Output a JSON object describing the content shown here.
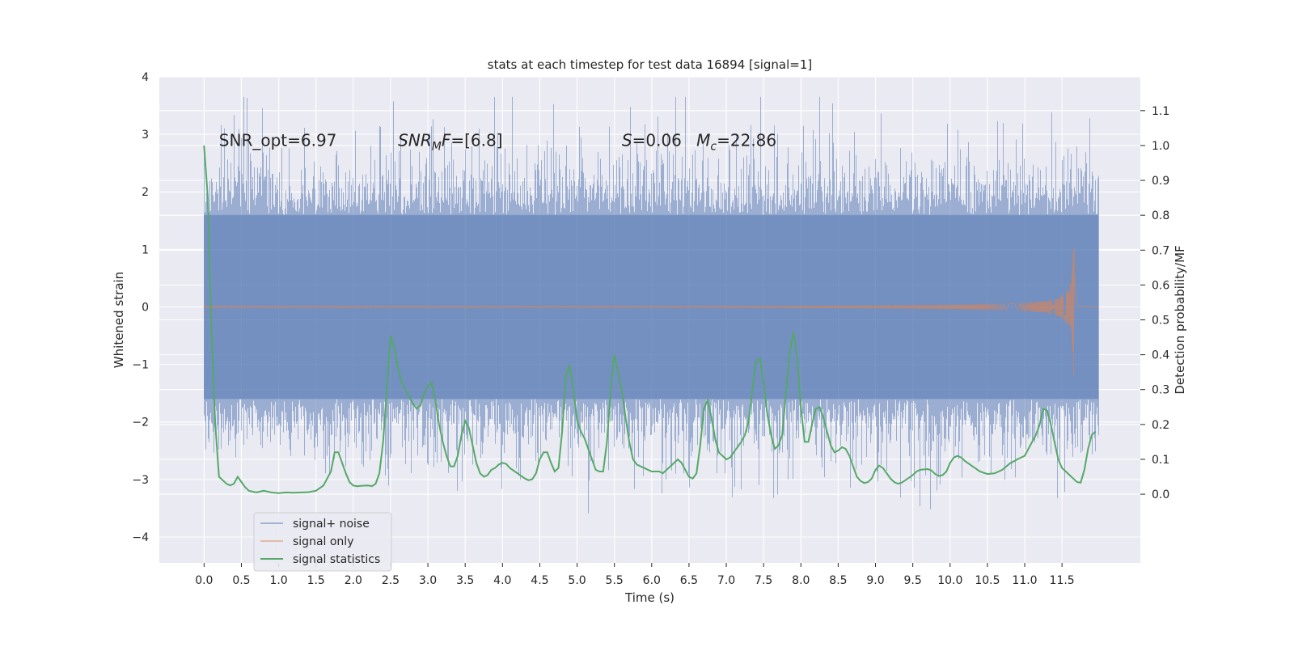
{
  "chart_data": {
    "type": "line",
    "title": "stats at each timestep for test data 16894 [signal=1]",
    "xlabel": "Time (s)",
    "ylabel": "Whitened strain",
    "y2label": "Detection probability/MF",
    "xlim": [
      -0.6,
      12.55
    ],
    "ylim": [
      -4.45,
      4.0
    ],
    "y2lim": [
      -0.197,
      1.197
    ],
    "x_ticks": [
      0.0,
      0.5,
      1.0,
      1.5,
      2.0,
      2.5,
      3.0,
      3.5,
      4.0,
      4.5,
      5.0,
      5.5,
      6.0,
      6.5,
      7.0,
      7.5,
      8.0,
      8.5,
      9.0,
      9.5,
      10.0,
      10.5,
      11.0,
      11.5
    ],
    "x_tick_labels": [
      "0.0",
      "0.5",
      "1.0",
      "1.5",
      "2.0",
      "2.5",
      "3.0",
      "3.5",
      "4.0",
      "4.5",
      "5.0",
      "5.5",
      "6.0",
      "6.5",
      "7.0",
      "7.5",
      "8.0",
      "8.5",
      "9.0",
      "9.5",
      "10.0",
      "10.5",
      "11.0",
      "11.5"
    ],
    "y_ticks": [
      4,
      3,
      2,
      1,
      0,
      -1,
      -2,
      -3,
      -4
    ],
    "y_tick_labels": [
      "4",
      "3",
      "2",
      "1",
      "0",
      "−1",
      "−2",
      "−3",
      "−4"
    ],
    "y2_ticks": [
      1.1,
      1.0,
      0.9,
      0.8,
      0.7,
      0.6,
      0.5,
      0.4,
      0.3,
      0.2,
      0.1,
      0.0
    ],
    "y2_tick_labels": [
      "1.1",
      "1.0",
      "0.9",
      "0.8",
      "0.7",
      "0.6",
      "0.5",
      "0.4",
      "0.3",
      "0.2",
      "0.1",
      "0.0"
    ],
    "grid": true,
    "legend_position": "lower-left",
    "series": [
      {
        "name": "signal+ noise",
        "color": "#4c72b0",
        "axis": "left",
        "t_range": [
          0.0,
          11.99
        ],
        "core_band": [
          -1.6,
          1.6
        ],
        "max_excursion": [
          -4.1,
          3.65
        ]
      },
      {
        "name": "signal only",
        "color": "#dd8452",
        "axis": "left",
        "t_range": [
          0.0,
          11.99
        ],
        "peak_time": 11.67,
        "peak_amplitude": 1.45
      },
      {
        "name": "signal statistics",
        "color": "#55a868",
        "axis": "right",
        "points": [
          [
            0.0,
            1.0
          ],
          [
            0.05,
            0.85
          ],
          [
            0.08,
            0.6
          ],
          [
            0.12,
            0.35
          ],
          [
            0.15,
            0.2
          ],
          [
            0.2,
            0.05
          ],
          [
            0.25,
            0.04
          ],
          [
            0.3,
            0.03
          ],
          [
            0.35,
            0.025
          ],
          [
            0.4,
            0.03
          ],
          [
            0.45,
            0.05
          ],
          [
            0.5,
            0.035
          ],
          [
            0.55,
            0.02
          ],
          [
            0.6,
            0.01
          ],
          [
            0.7,
            0.005
          ],
          [
            0.8,
            0.01
          ],
          [
            0.9,
            0.005
          ],
          [
            1.0,
            0.003
          ],
          [
            1.1,
            0.005
          ],
          [
            1.2,
            0.004
          ],
          [
            1.3,
            0.005
          ],
          [
            1.4,
            0.006
          ],
          [
            1.5,
            0.01
          ],
          [
            1.6,
            0.025
          ],
          [
            1.7,
            0.065
          ],
          [
            1.75,
            0.12
          ],
          [
            1.8,
            0.12
          ],
          [
            1.85,
            0.09
          ],
          [
            1.9,
            0.06
          ],
          [
            1.95,
            0.035
          ],
          [
            2.0,
            0.025
          ],
          [
            2.05,
            0.023
          ],
          [
            2.1,
            0.024
          ],
          [
            2.2,
            0.025
          ],
          [
            2.25,
            0.023
          ],
          [
            2.3,
            0.03
          ],
          [
            2.35,
            0.06
          ],
          [
            2.4,
            0.15
          ],
          [
            2.45,
            0.3
          ],
          [
            2.5,
            0.455
          ],
          [
            2.55,
            0.42
          ],
          [
            2.6,
            0.36
          ],
          [
            2.65,
            0.32
          ],
          [
            2.7,
            0.3
          ],
          [
            2.75,
            0.28
          ],
          [
            2.8,
            0.26
          ],
          [
            2.85,
            0.245
          ],
          [
            2.9,
            0.255
          ],
          [
            2.95,
            0.29
          ],
          [
            3.0,
            0.31
          ],
          [
            3.05,
            0.32
          ],
          [
            3.1,
            0.27
          ],
          [
            3.15,
            0.2
          ],
          [
            3.2,
            0.15
          ],
          [
            3.25,
            0.11
          ],
          [
            3.3,
            0.08
          ],
          [
            3.35,
            0.08
          ],
          [
            3.4,
            0.11
          ],
          [
            3.45,
            0.17
          ],
          [
            3.5,
            0.21
          ],
          [
            3.55,
            0.19
          ],
          [
            3.6,
            0.14
          ],
          [
            3.65,
            0.09
          ],
          [
            3.7,
            0.06
          ],
          [
            3.75,
            0.05
          ],
          [
            3.8,
            0.055
          ],
          [
            3.85,
            0.07
          ],
          [
            3.9,
            0.075
          ],
          [
            3.95,
            0.085
          ],
          [
            4.0,
            0.09
          ],
          [
            4.05,
            0.087
          ],
          [
            4.1,
            0.075
          ],
          [
            4.2,
            0.06
          ],
          [
            4.3,
            0.045
          ],
          [
            4.35,
            0.04
          ],
          [
            4.4,
            0.043
          ],
          [
            4.45,
            0.06
          ],
          [
            4.5,
            0.1
          ],
          [
            4.55,
            0.12
          ],
          [
            4.6,
            0.12
          ],
          [
            4.65,
            0.09
          ],
          [
            4.7,
            0.065
          ],
          [
            4.75,
            0.075
          ],
          [
            4.8,
            0.18
          ],
          [
            4.85,
            0.34
          ],
          [
            4.9,
            0.37
          ],
          [
            4.95,
            0.3
          ],
          [
            5.0,
            0.21
          ],
          [
            5.05,
            0.18
          ],
          [
            5.1,
            0.16
          ],
          [
            5.15,
            0.13
          ],
          [
            5.2,
            0.1
          ],
          [
            5.25,
            0.07
          ],
          [
            5.3,
            0.065
          ],
          [
            5.35,
            0.065
          ],
          [
            5.4,
            0.15
          ],
          [
            5.45,
            0.3
          ],
          [
            5.5,
            0.4
          ],
          [
            5.55,
            0.35
          ],
          [
            5.6,
            0.3
          ],
          [
            5.65,
            0.22
          ],
          [
            5.7,
            0.15
          ],
          [
            5.75,
            0.1
          ],
          [
            5.8,
            0.085
          ],
          [
            5.9,
            0.075
          ],
          [
            6.0,
            0.065
          ],
          [
            6.05,
            0.065
          ],
          [
            6.1,
            0.065
          ],
          [
            6.15,
            0.06
          ],
          [
            6.2,
            0.07
          ],
          [
            6.25,
            0.08
          ],
          [
            6.3,
            0.09
          ],
          [
            6.35,
            0.1
          ],
          [
            6.4,
            0.09
          ],
          [
            6.45,
            0.07
          ],
          [
            6.5,
            0.05
          ],
          [
            6.55,
            0.045
          ],
          [
            6.6,
            0.06
          ],
          [
            6.65,
            0.14
          ],
          [
            6.7,
            0.245
          ],
          [
            6.75,
            0.27
          ],
          [
            6.8,
            0.22
          ],
          [
            6.85,
            0.16
          ],
          [
            6.9,
            0.12
          ],
          [
            6.95,
            0.11
          ],
          [
            7.0,
            0.1
          ],
          [
            7.05,
            0.105
          ],
          [
            7.1,
            0.12
          ],
          [
            7.2,
            0.15
          ],
          [
            7.25,
            0.17
          ],
          [
            7.3,
            0.21
          ],
          [
            7.35,
            0.3
          ],
          [
            7.4,
            0.38
          ],
          [
            7.45,
            0.39
          ],
          [
            7.5,
            0.32
          ],
          [
            7.55,
            0.23
          ],
          [
            7.6,
            0.17
          ],
          [
            7.65,
            0.13
          ],
          [
            7.7,
            0.14
          ],
          [
            7.75,
            0.17
          ],
          [
            7.8,
            0.29
          ],
          [
            7.85,
            0.41
          ],
          [
            7.9,
            0.465
          ],
          [
            7.95,
            0.39
          ],
          [
            8.0,
            0.25
          ],
          [
            8.05,
            0.15
          ],
          [
            8.1,
            0.15
          ],
          [
            8.15,
            0.2
          ],
          [
            8.2,
            0.245
          ],
          [
            8.25,
            0.25
          ],
          [
            8.3,
            0.22
          ],
          [
            8.35,
            0.18
          ],
          [
            8.4,
            0.14
          ],
          [
            8.45,
            0.12
          ],
          [
            8.5,
            0.125
          ],
          [
            8.55,
            0.135
          ],
          [
            8.6,
            0.13
          ],
          [
            8.65,
            0.11
          ],
          [
            8.7,
            0.08
          ],
          [
            8.75,
            0.05
          ],
          [
            8.8,
            0.038
          ],
          [
            8.85,
            0.032
          ],
          [
            8.9,
            0.035
          ],
          [
            8.95,
            0.045
          ],
          [
            9.0,
            0.07
          ],
          [
            9.05,
            0.082
          ],
          [
            9.1,
            0.075
          ],
          [
            9.15,
            0.06
          ],
          [
            9.2,
            0.045
          ],
          [
            9.25,
            0.035
          ],
          [
            9.3,
            0.03
          ],
          [
            9.35,
            0.033
          ],
          [
            9.4,
            0.04
          ],
          [
            9.5,
            0.055
          ],
          [
            9.55,
            0.065
          ],
          [
            9.6,
            0.07
          ],
          [
            9.7,
            0.072
          ],
          [
            9.75,
            0.068
          ],
          [
            9.8,
            0.058
          ],
          [
            9.85,
            0.052
          ],
          [
            9.9,
            0.055
          ],
          [
            9.95,
            0.065
          ],
          [
            10.0,
            0.09
          ],
          [
            10.05,
            0.105
          ],
          [
            10.1,
            0.11
          ],
          [
            10.15,
            0.105
          ],
          [
            10.2,
            0.095
          ],
          [
            10.3,
            0.08
          ],
          [
            10.4,
            0.065
          ],
          [
            10.5,
            0.058
          ],
          [
            10.6,
            0.06
          ],
          [
            10.7,
            0.07
          ],
          [
            10.8,
            0.088
          ],
          [
            10.9,
            0.1
          ],
          [
            11.0,
            0.11
          ],
          [
            11.05,
            0.13
          ],
          [
            11.1,
            0.15
          ],
          [
            11.15,
            0.17
          ],
          [
            11.2,
            0.2
          ],
          [
            11.25,
            0.245
          ],
          [
            11.3,
            0.24
          ],
          [
            11.35,
            0.2
          ],
          [
            11.4,
            0.15
          ],
          [
            11.45,
            0.1
          ],
          [
            11.5,
            0.075
          ],
          [
            11.55,
            0.065
          ],
          [
            11.6,
            0.055
          ],
          [
            11.65,
            0.045
          ],
          [
            11.7,
            0.035
          ],
          [
            11.75,
            0.033
          ],
          [
            11.8,
            0.07
          ],
          [
            11.85,
            0.13
          ],
          [
            11.9,
            0.17
          ],
          [
            11.95,
            0.18
          ]
        ]
      }
    ],
    "annotations": [
      {
        "parts": [
          {
            "text": "SNR_opt=6.97",
            "italic": false
          }
        ],
        "at": [
          0.2,
          2.8
        ]
      },
      {
        "parts": [
          {
            "text": "SNR",
            "italic": true
          },
          {
            "text": "M",
            "italic": true,
            "sub": true
          },
          {
            "text": "F",
            "italic": true
          },
          {
            "text": "=[6.8]",
            "italic": false
          }
        ],
        "at": [
          2.6,
          2.8
        ]
      },
      {
        "parts": [
          {
            "text": "S",
            "italic": true
          },
          {
            "text": "=0.06",
            "italic": false
          }
        ],
        "at": [
          5.6,
          2.8
        ]
      },
      {
        "parts": [
          {
            "text": "M",
            "italic": true
          },
          {
            "text": "c",
            "italic": true,
            "sub": true
          },
          {
            "text": "=22.86",
            "italic": false
          }
        ],
        "at": [
          6.6,
          2.8
        ]
      }
    ]
  }
}
